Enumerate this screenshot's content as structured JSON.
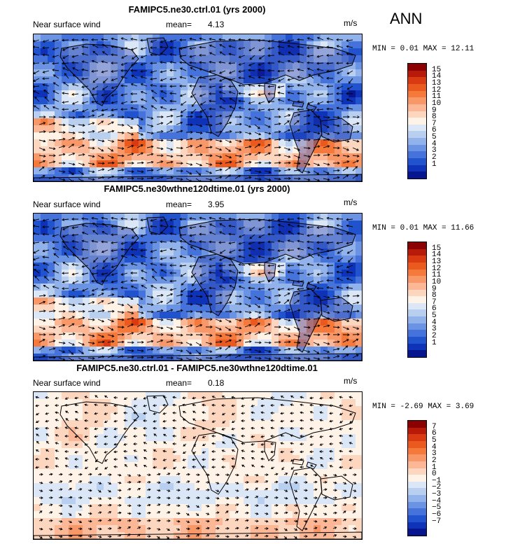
{
  "season": "ANN",
  "panels": [
    {
      "title": "FAMIPC5.ne30.ctrl.01 (yrs 2000)",
      "variable": "Near surface wind",
      "mean_label": "mean=",
      "mean_value": "4.13",
      "units": "m/s",
      "min_label": "MIN =",
      "min_value": "0.01",
      "max_label": "MAX =",
      "max_value": "12.11",
      "colorbar_labels": [
        "15",
        "14",
        "13",
        "12",
        "11",
        "10",
        "9",
        "8",
        "7",
        "6",
        "5",
        "4",
        "3",
        "2",
        "1"
      ],
      "colorbar_colors": [
        "#8b0000",
        "#b81a0a",
        "#d93a12",
        "#ea5a1e",
        "#f4793a",
        "#f89868",
        "#fbb796",
        "#fdd6c0",
        "#fff2e6",
        "#dbe7f7",
        "#b8cff0",
        "#91b2ea",
        "#6a94e3",
        "#4573db",
        "#2253cf",
        "#0f33b8",
        "#07158f"
      ],
      "map_kind": "magnitude"
    },
    {
      "title": "FAMIPC5.ne30wthne120dtime.01 (yrs 2000)",
      "variable": "Near surface wind",
      "mean_label": "mean=",
      "mean_value": "3.95",
      "units": "m/s",
      "min_label": "MIN =",
      "min_value": "0.01",
      "max_label": "MAX =",
      "max_value": "11.66",
      "colorbar_labels": [
        "15",
        "14",
        "13",
        "12",
        "11",
        "10",
        "9",
        "8",
        "7",
        "6",
        "5",
        "4",
        "3",
        "2",
        "1"
      ],
      "colorbar_colors": [
        "#8b0000",
        "#b81a0a",
        "#d93a12",
        "#ea5a1e",
        "#f4793a",
        "#f89868",
        "#fbb796",
        "#fdd6c0",
        "#fff2e6",
        "#dbe7f7",
        "#b8cff0",
        "#91b2ea",
        "#6a94e3",
        "#4573db",
        "#2253cf",
        "#0f33b8",
        "#07158f"
      ],
      "map_kind": "magnitude"
    },
    {
      "title": "FAMIPC5.ne30.ctrl.01 - FAMIPC5.ne30wthne120dtime.01",
      "variable": "Near surface wind",
      "mean_label": "mean=",
      "mean_value": "0.18",
      "units": "m/s",
      "min_label": "MIN =",
      "min_value": "-2.69",
      "max_label": "MAX =",
      "max_value": "3.69",
      "colorbar_labels": [
        "7",
        "6",
        "5",
        "4",
        "3",
        "2",
        "1",
        "0",
        "−1",
        "−2",
        "−3",
        "−4",
        "−5",
        "−6",
        "−7"
      ],
      "colorbar_colors": [
        "#8b0000",
        "#b81a0a",
        "#d93a12",
        "#ea5a1e",
        "#f4793a",
        "#f89868",
        "#fbb796",
        "#fdd6c0",
        "#fff2e6",
        "#dbe7f7",
        "#b8cff0",
        "#91b2ea",
        "#6a94e3",
        "#4573db",
        "#2253cf",
        "#0f33b8",
        "#07158f"
      ],
      "map_kind": "difference"
    }
  ]
}
